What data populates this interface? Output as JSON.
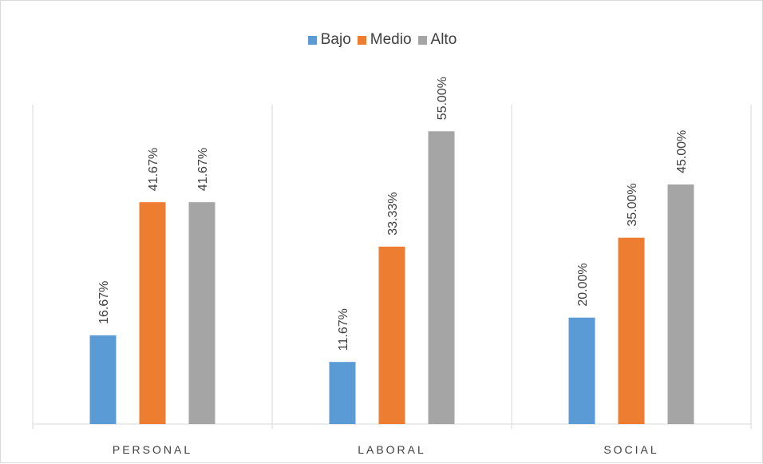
{
  "chart_data": {
    "type": "bar",
    "categories": [
      "PERSONAL",
      "LABORAL",
      "SOCIAL"
    ],
    "series": [
      {
        "name": "Bajo",
        "color": "#5b9bd5",
        "values": [
          16.67,
          11.67,
          20.0
        ],
        "labels": [
          "16.67%",
          "11.67%",
          "20.00%"
        ]
      },
      {
        "name": "Medio",
        "color": "#ed7d31",
        "values": [
          41.67,
          33.33,
          35.0
        ],
        "labels": [
          "41.67%",
          "33.33%",
          "35.00%"
        ]
      },
      {
        "name": "Alto",
        "color": "#a5a5a5",
        "values": [
          41.67,
          55.0,
          45.0
        ],
        "labels": [
          "41.67%",
          "55.00%",
          "45.00%"
        ]
      }
    ],
    "ylim": [
      0,
      60
    ],
    "legend_position": "top-center",
    "grid": false
  }
}
